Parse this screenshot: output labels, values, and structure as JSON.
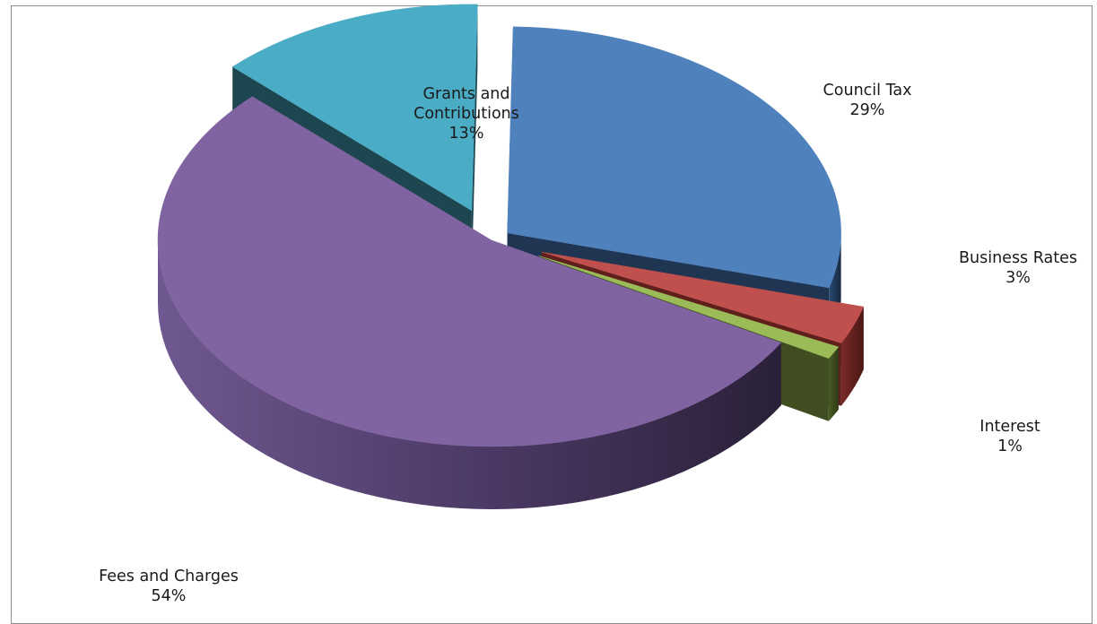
{
  "chart_data": {
    "type": "pie",
    "style": "3d-exploded",
    "title": "",
    "legend": "none",
    "slices": [
      {
        "name": "Council Tax",
        "value": 29,
        "label": "29%",
        "color": "#4f81bd",
        "side_color": "#1f3552"
      },
      {
        "name": "Business Rates",
        "value": 3,
        "label": "3%",
        "color": "#c0504d",
        "side_color": "#5e1f1d"
      },
      {
        "name": "Interest",
        "value": 1,
        "label": "1%",
        "color": "#9bbb59",
        "side_color": "#3f4d20"
      },
      {
        "name": "Fees and Charges",
        "value": 54,
        "label": "54%",
        "color": "#8064a2",
        "side_color": "#3a2a4d"
      },
      {
        "name": "Grants and Contributions",
        "value": 13,
        "label": "13%",
        "color": "#4bacc6",
        "side_color": "#1e4650"
      }
    ]
  }
}
